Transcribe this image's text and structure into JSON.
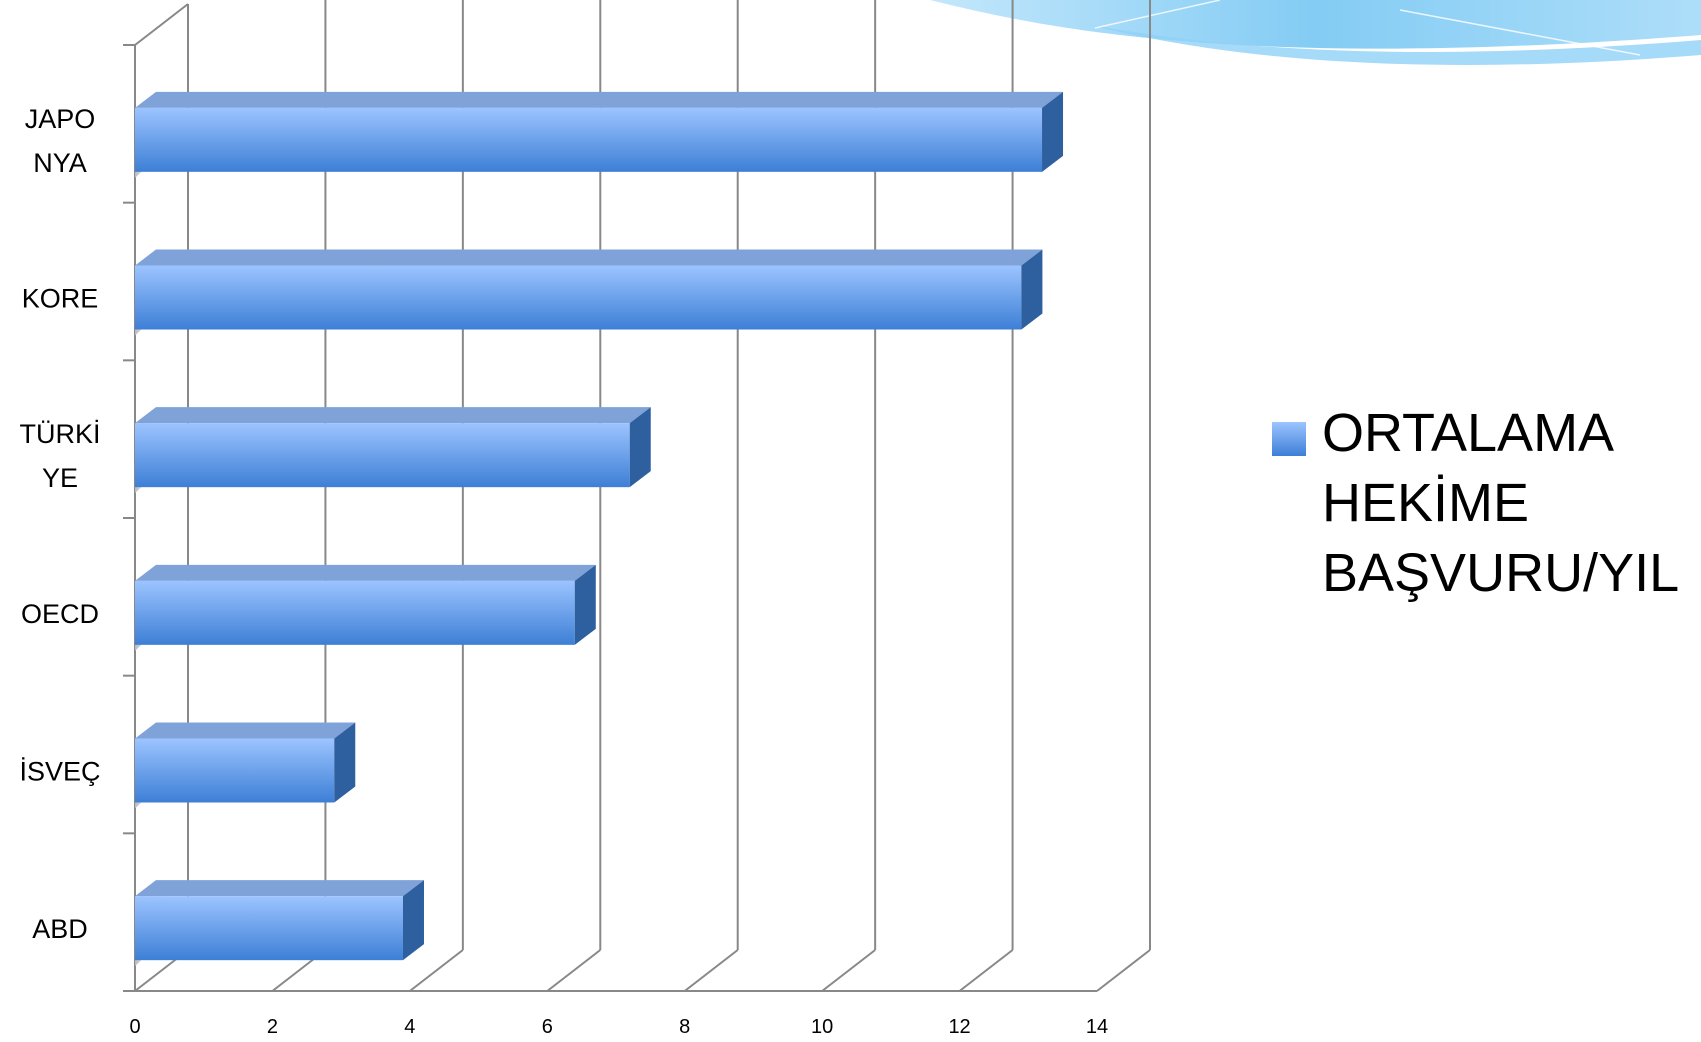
{
  "chart_data": {
    "type": "bar",
    "orientation": "horizontal",
    "categories": [
      "JAPONYA",
      "KORE",
      "TÜRKİYE",
      "OECD",
      "İSVEÇ",
      "ABD"
    ],
    "category_labels_display": [
      "JAPO\nNYA",
      "KORE",
      "TÜRKİ\nYE",
      "OECD",
      "İSVEÇ",
      "ABD"
    ],
    "series": [
      {
        "name": "ORTALAMA HEKİME BAŞVURU/YIL",
        "values": [
          13.2,
          12.9,
          7.2,
          6.4,
          2.9,
          3.9
        ]
      }
    ],
    "xlim": [
      0,
      14
    ],
    "xticks": [
      0,
      2,
      4,
      6,
      8,
      10,
      12,
      14
    ],
    "grid": true,
    "legend_position": "right",
    "bar_color": "#5b93e6"
  },
  "legend": {
    "label": "ORTALAMA HEKİME BAŞVURU/YIL"
  },
  "colors": {
    "bar_top": "#9cc4ff",
    "bar_bottom": "#3d7fd6",
    "bar_side": "#2e5f9e",
    "bar_cap": "#7fa3d9",
    "grid": "#888888",
    "decor": "#7dc8f5"
  }
}
